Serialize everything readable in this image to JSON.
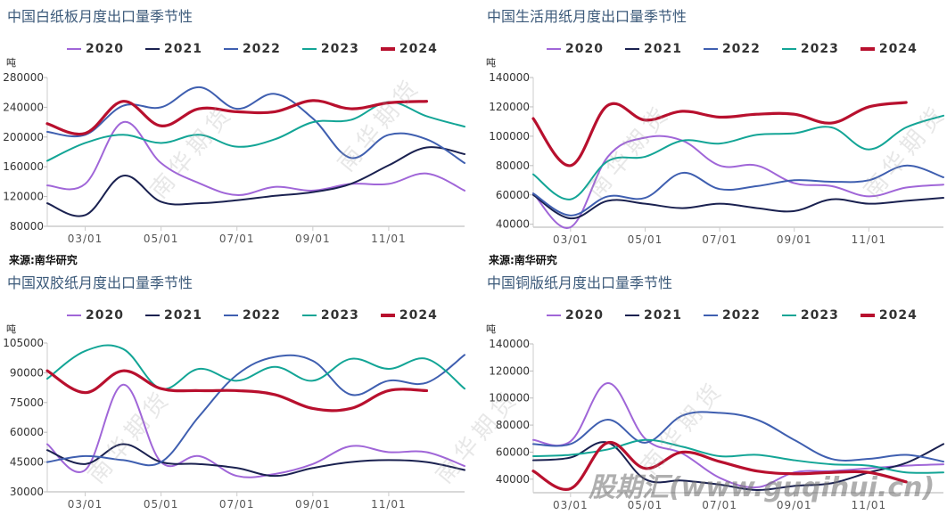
{
  "source_label": "来源:南华研究",
  "watermark_text": "南华期货",
  "site_watermark": "股期汇(www.guqihui.cn)",
  "colors": {
    "2020": "#a066d8",
    "2021": "#1a2150",
    "2022": "#3f5fb0",
    "2023": "#13a596",
    "2024": "#b8102e"
  },
  "chart_data": [
    {
      "type": "line",
      "title": "中国白纸板月度出口量季节性",
      "ylabel": "吨",
      "xlabel": "",
      "ylim": [
        80000,
        280000
      ],
      "yticks": [
        "80000",
        "120000",
        "160000",
        "200000",
        "240000",
        "280000"
      ],
      "xticks": [
        "03/01",
        "05/01",
        "07/01",
        "09/01",
        "11/01"
      ],
      "legend": [
        "2020",
        "2021",
        "2022",
        "2023",
        "2024"
      ],
      "legend_position": "top",
      "x_months": [
        2,
        3,
        4,
        5,
        6,
        7,
        8,
        9,
        10,
        11,
        12,
        13
      ],
      "series": [
        {
          "name": "2020",
          "values": [
            135000,
            137000,
            220000,
            165000,
            138000,
            122000,
            133000,
            128000,
            137000,
            137000,
            151000,
            128000
          ]
        },
        {
          "name": "2021",
          "values": [
            111000,
            95000,
            148000,
            113000,
            111000,
            115000,
            121000,
            126000,
            137000,
            162000,
            186000,
            177000
          ]
        },
        {
          "name": "2022",
          "values": [
            207000,
            203000,
            242000,
            240000,
            267000,
            238000,
            258000,
            225000,
            172000,
            203000,
            197000,
            165000
          ]
        },
        {
          "name": "2023",
          "values": [
            168000,
            192000,
            203000,
            192000,
            203000,
            187000,
            197000,
            220000,
            223000,
            247000,
            228000,
            214000
          ]
        },
        {
          "name": "2024",
          "values": [
            218000,
            205000,
            248000,
            215000,
            238000,
            234000,
            234000,
            249000,
            238000,
            246000,
            248000
          ]
        }
      ],
      "source": "来源:南华研究"
    },
    {
      "type": "line",
      "title": "中国生活用纸月度出口量季节性",
      "ylabel": "吨",
      "xlabel": "",
      "ylim": [
        38000,
        140000
      ],
      "yticks": [
        "40000",
        "60000",
        "80000",
        "100000",
        "120000",
        "140000"
      ],
      "xticks": [
        "03/01",
        "05/01",
        "07/01",
        "09/01",
        "11/01"
      ],
      "legend": [
        "2020",
        "2021",
        "2022",
        "2023",
        "2024"
      ],
      "legend_position": "top",
      "x_months": [
        2,
        3,
        4,
        5,
        6,
        7,
        8,
        9,
        10,
        11,
        12,
        13
      ],
      "series": [
        {
          "name": "2020",
          "values": [
            61000,
            38000,
            86000,
            99000,
            97000,
            80000,
            80000,
            68000,
            66000,
            59000,
            65000,
            67000
          ]
        },
        {
          "name": "2021",
          "values": [
            60000,
            44000,
            56000,
            54000,
            51000,
            54000,
            51000,
            49000,
            57000,
            54000,
            56000,
            58000
          ]
        },
        {
          "name": "2022",
          "values": [
            61000,
            46000,
            59000,
            58000,
            75000,
            64000,
            66000,
            70000,
            69000,
            70000,
            80000,
            72000
          ]
        },
        {
          "name": "2023",
          "values": [
            74000,
            57000,
            83000,
            86000,
            97000,
            95000,
            101000,
            102000,
            106000,
            91000,
            106000,
            114000
          ]
        },
        {
          "name": "2024",
          "values": [
            112000,
            80000,
            121000,
            111000,
            117000,
            113000,
            115000,
            115000,
            109000,
            120000,
            123000
          ]
        }
      ],
      "source": "来源:南华研究"
    },
    {
      "type": "line",
      "title": "中国双胶纸月度出口量季节性",
      "ylabel": "吨",
      "xlabel": "",
      "ylim": [
        30000,
        105000
      ],
      "yticks": [
        "30000",
        "45000",
        "60000",
        "75000",
        "90000",
        "105000"
      ],
      "xticks": [
        "03/01",
        "05/01",
        "07/01",
        "09/01",
        "11/01"
      ],
      "legend": [
        "2020",
        "2021",
        "2022",
        "2023",
        "2024"
      ],
      "legend_position": "top",
      "x_months": [
        2,
        3,
        4,
        5,
        6,
        7,
        8,
        9,
        10,
        11,
        12,
        13
      ],
      "series": [
        {
          "name": "2020",
          "values": [
            54000,
            41000,
            84000,
            45000,
            48000,
            38000,
            39000,
            44000,
            53000,
            50000,
            50000,
            43000
          ]
        },
        {
          "name": "2021",
          "values": [
            51000,
            44000,
            54000,
            45000,
            44000,
            42000,
            38000,
            42000,
            45000,
            46000,
            45000,
            41000
          ]
        },
        {
          "name": "2022",
          "values": [
            45000,
            48000,
            46000,
            45000,
            68000,
            89000,
            98000,
            96000,
            79000,
            86000,
            85000,
            99000
          ]
        },
        {
          "name": "2023",
          "values": [
            87000,
            101000,
            102000,
            82000,
            92000,
            86000,
            93000,
            86000,
            97000,
            92000,
            97000,
            82000
          ]
        },
        {
          "name": "2024",
          "values": [
            91000,
            80000,
            91000,
            82000,
            81000,
            81000,
            79000,
            72000,
            72000,
            81000,
            81000
          ]
        }
      ],
      "source": ""
    },
    {
      "type": "line",
      "title": "中国铜版纸月度出口量季节性",
      "ylabel": "吨",
      "xlabel": "",
      "ylim": [
        30000,
        140000
      ],
      "yticks": [
        "40000",
        "60000",
        "80000",
        "100000",
        "120000",
        "140000"
      ],
      "xticks": [
        "03/01",
        "05/01",
        "07/01",
        "09/01",
        "11/01"
      ],
      "legend": [
        "2020",
        "2021",
        "2022",
        "2023",
        "2024"
      ],
      "legend_position": "top",
      "x_months": [
        2,
        3,
        4,
        5,
        6,
        7,
        8,
        9,
        10,
        11,
        12,
        13
      ],
      "series": [
        {
          "name": "2020",
          "values": [
            69000,
            68000,
            111000,
            70000,
            59000,
            41000,
            34000,
            45000,
            46000,
            48000,
            50000,
            51000
          ]
        },
        {
          "name": "2021",
          "values": [
            54000,
            56000,
            67000,
            40000,
            39000,
            36000,
            32000,
            35000,
            37000,
            45000,
            52000,
            66000
          ]
        },
        {
          "name": "2022",
          "values": [
            66000,
            66000,
            84000,
            67000,
            87000,
            89000,
            84000,
            69000,
            55000,
            55000,
            58000,
            53000
          ]
        },
        {
          "name": "2023",
          "values": [
            57000,
            58000,
            62000,
            69000,
            64000,
            57000,
            58000,
            54000,
            51000,
            50000,
            45000,
            45000
          ]
        },
        {
          "name": "2024",
          "values": [
            46000,
            33000,
            67000,
            48000,
            60000,
            53000,
            46000,
            44000,
            45000,
            45000,
            38000
          ]
        }
      ],
      "source": ""
    }
  ]
}
